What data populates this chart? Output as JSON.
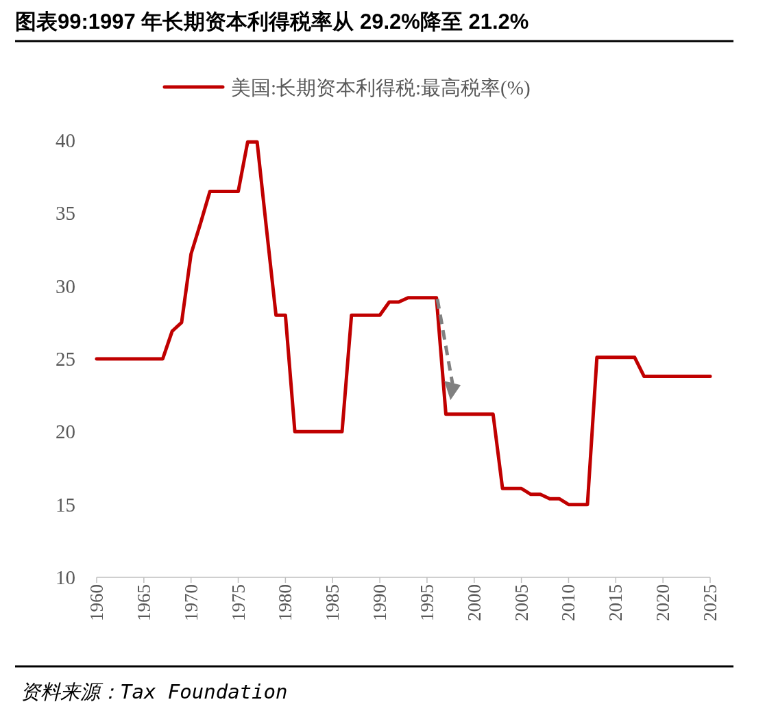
{
  "chart_data": {
    "type": "line",
    "title": "图表99:1997 年长期资本利得税率从 29.2%降至 21.2%",
    "annotations": [
      "资料来源：Tax Foundation"
    ],
    "x": [
      1960,
      1961,
      1962,
      1963,
      1964,
      1965,
      1966,
      1967,
      1968,
      1969,
      1970,
      1971,
      1972,
      1973,
      1974,
      1975,
      1976,
      1977,
      1978,
      1979,
      1980,
      1981,
      1982,
      1983,
      1984,
      1985,
      1986,
      1987,
      1988,
      1989,
      1990,
      1991,
      1992,
      1993,
      1994,
      1995,
      1996,
      1997,
      1998,
      1999,
      2000,
      2001,
      2002,
      2003,
      2004,
      2005,
      2006,
      2007,
      2008,
      2009,
      2010,
      2011,
      2012,
      2013,
      2014,
      2015,
      2016,
      2017,
      2018,
      2019,
      2020,
      2021,
      2022,
      2023,
      2024,
      2025
    ],
    "series": [
      {
        "name": "美国:长期资本利得税:最高税率(%)",
        "color": "#c00000",
        "values": [
          25,
          25,
          25,
          25,
          25,
          25,
          25,
          25,
          26.9,
          27.5,
          32.2,
          34.3,
          36.5,
          36.5,
          36.5,
          36.5,
          39.9,
          39.9,
          33.9,
          28,
          28,
          20,
          20,
          20,
          20,
          20,
          20,
          28,
          28,
          28,
          28,
          28.9,
          28.9,
          29.2,
          29.2,
          29.2,
          29.2,
          21.2,
          21.2,
          21.2,
          21.2,
          21.2,
          21.2,
          16.1,
          16.1,
          16.1,
          15.7,
          15.7,
          15.4,
          15.4,
          15,
          15,
          15,
          25.1,
          25.1,
          25.1,
          25.1,
          25.1,
          23.8,
          23.8,
          23.8,
          23.8,
          23.8,
          23.8,
          23.8,
          23.8
        ]
      }
    ],
    "xlim": [
      1960,
      2025
    ],
    "ylim": [
      10,
      40
    ],
    "xticks": [
      1960,
      1965,
      1970,
      1975,
      1980,
      1985,
      1990,
      1995,
      2000,
      2005,
      2010,
      2015,
      2020,
      2025
    ],
    "yticks": [
      10,
      15,
      20,
      25,
      30,
      35,
      40
    ],
    "legend": "top",
    "line_style": "solid"
  }
}
